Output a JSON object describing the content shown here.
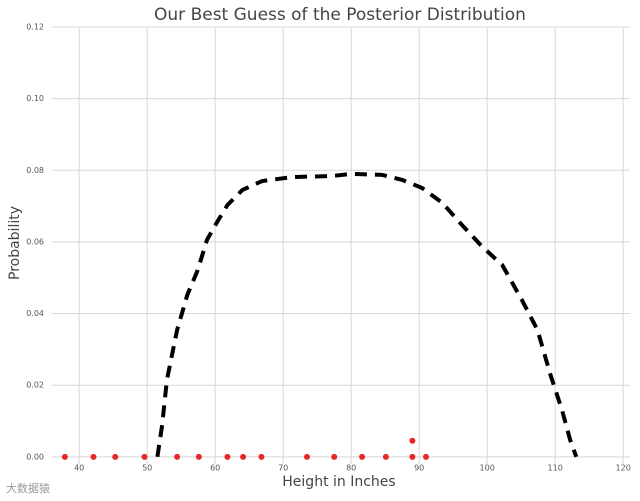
{
  "chart_data": {
    "type": "line",
    "title": "Our Best Guess of the Posterior Distribution",
    "x_label": "Height in Inches",
    "y_label": "Probability",
    "watermark": "大数据猿",
    "xlim": [
      36,
      121
    ],
    "ylim": [
      -0.002,
      0.12
    ],
    "xticks": [
      40,
      50,
      60,
      70,
      80,
      90,
      100,
      110,
      120
    ],
    "yticks": [
      {
        "value": 0,
        "label": "0.00"
      },
      {
        "value": 0.02,
        "label": "0.02"
      },
      {
        "value": 0.04,
        "label": "0.04"
      },
      {
        "value": 0.06,
        "label": "0.06"
      },
      {
        "value": 0.08,
        "label": "0.08"
      },
      {
        "value": 0.1,
        "label": "0.10"
      },
      {
        "value": 0.12,
        "label": "0.12"
      }
    ],
    "grid": true,
    "series": [
      {
        "type": "line",
        "dashed": true,
        "color": "#000000",
        "x": [
          51.5,
          52.2,
          52.9,
          54.4,
          55.9,
          57.4,
          58.8,
          60.3,
          61.8,
          64,
          66.9,
          71.3,
          77.2,
          80.1,
          84.6,
          87.5,
          90.4,
          93.4,
          96.3,
          99.3,
          102.2,
          105.1,
          107.4,
          109.3,
          111,
          112.2,
          113.1
        ],
        "values": [
          0,
          0.0089,
          0.0215,
          0.0354,
          0.0452,
          0.052,
          0.0606,
          0.0656,
          0.0703,
          0.0745,
          0.077,
          0.0781,
          0.0784,
          0.079,
          0.0787,
          0.0773,
          0.0751,
          0.0709,
          0.0647,
          0.0586,
          0.0536,
          0.0438,
          0.0354,
          0.0229,
          0.0131,
          0.0047,
          0
        ]
      },
      {
        "type": "scatter",
        "color": "#e8262a",
        "x": [
          37.9,
          42.1,
          45.3,
          49.6,
          54.4,
          57.6,
          61.8,
          64.1,
          66.8,
          73.5,
          77.5,
          81.6,
          85.1,
          89,
          91,
          89
        ],
        "values": [
          0,
          0,
          0,
          0,
          0,
          0,
          0,
          0,
          0,
          0,
          0,
          0,
          0,
          0,
          0,
          0.0045
        ]
      }
    ]
  }
}
